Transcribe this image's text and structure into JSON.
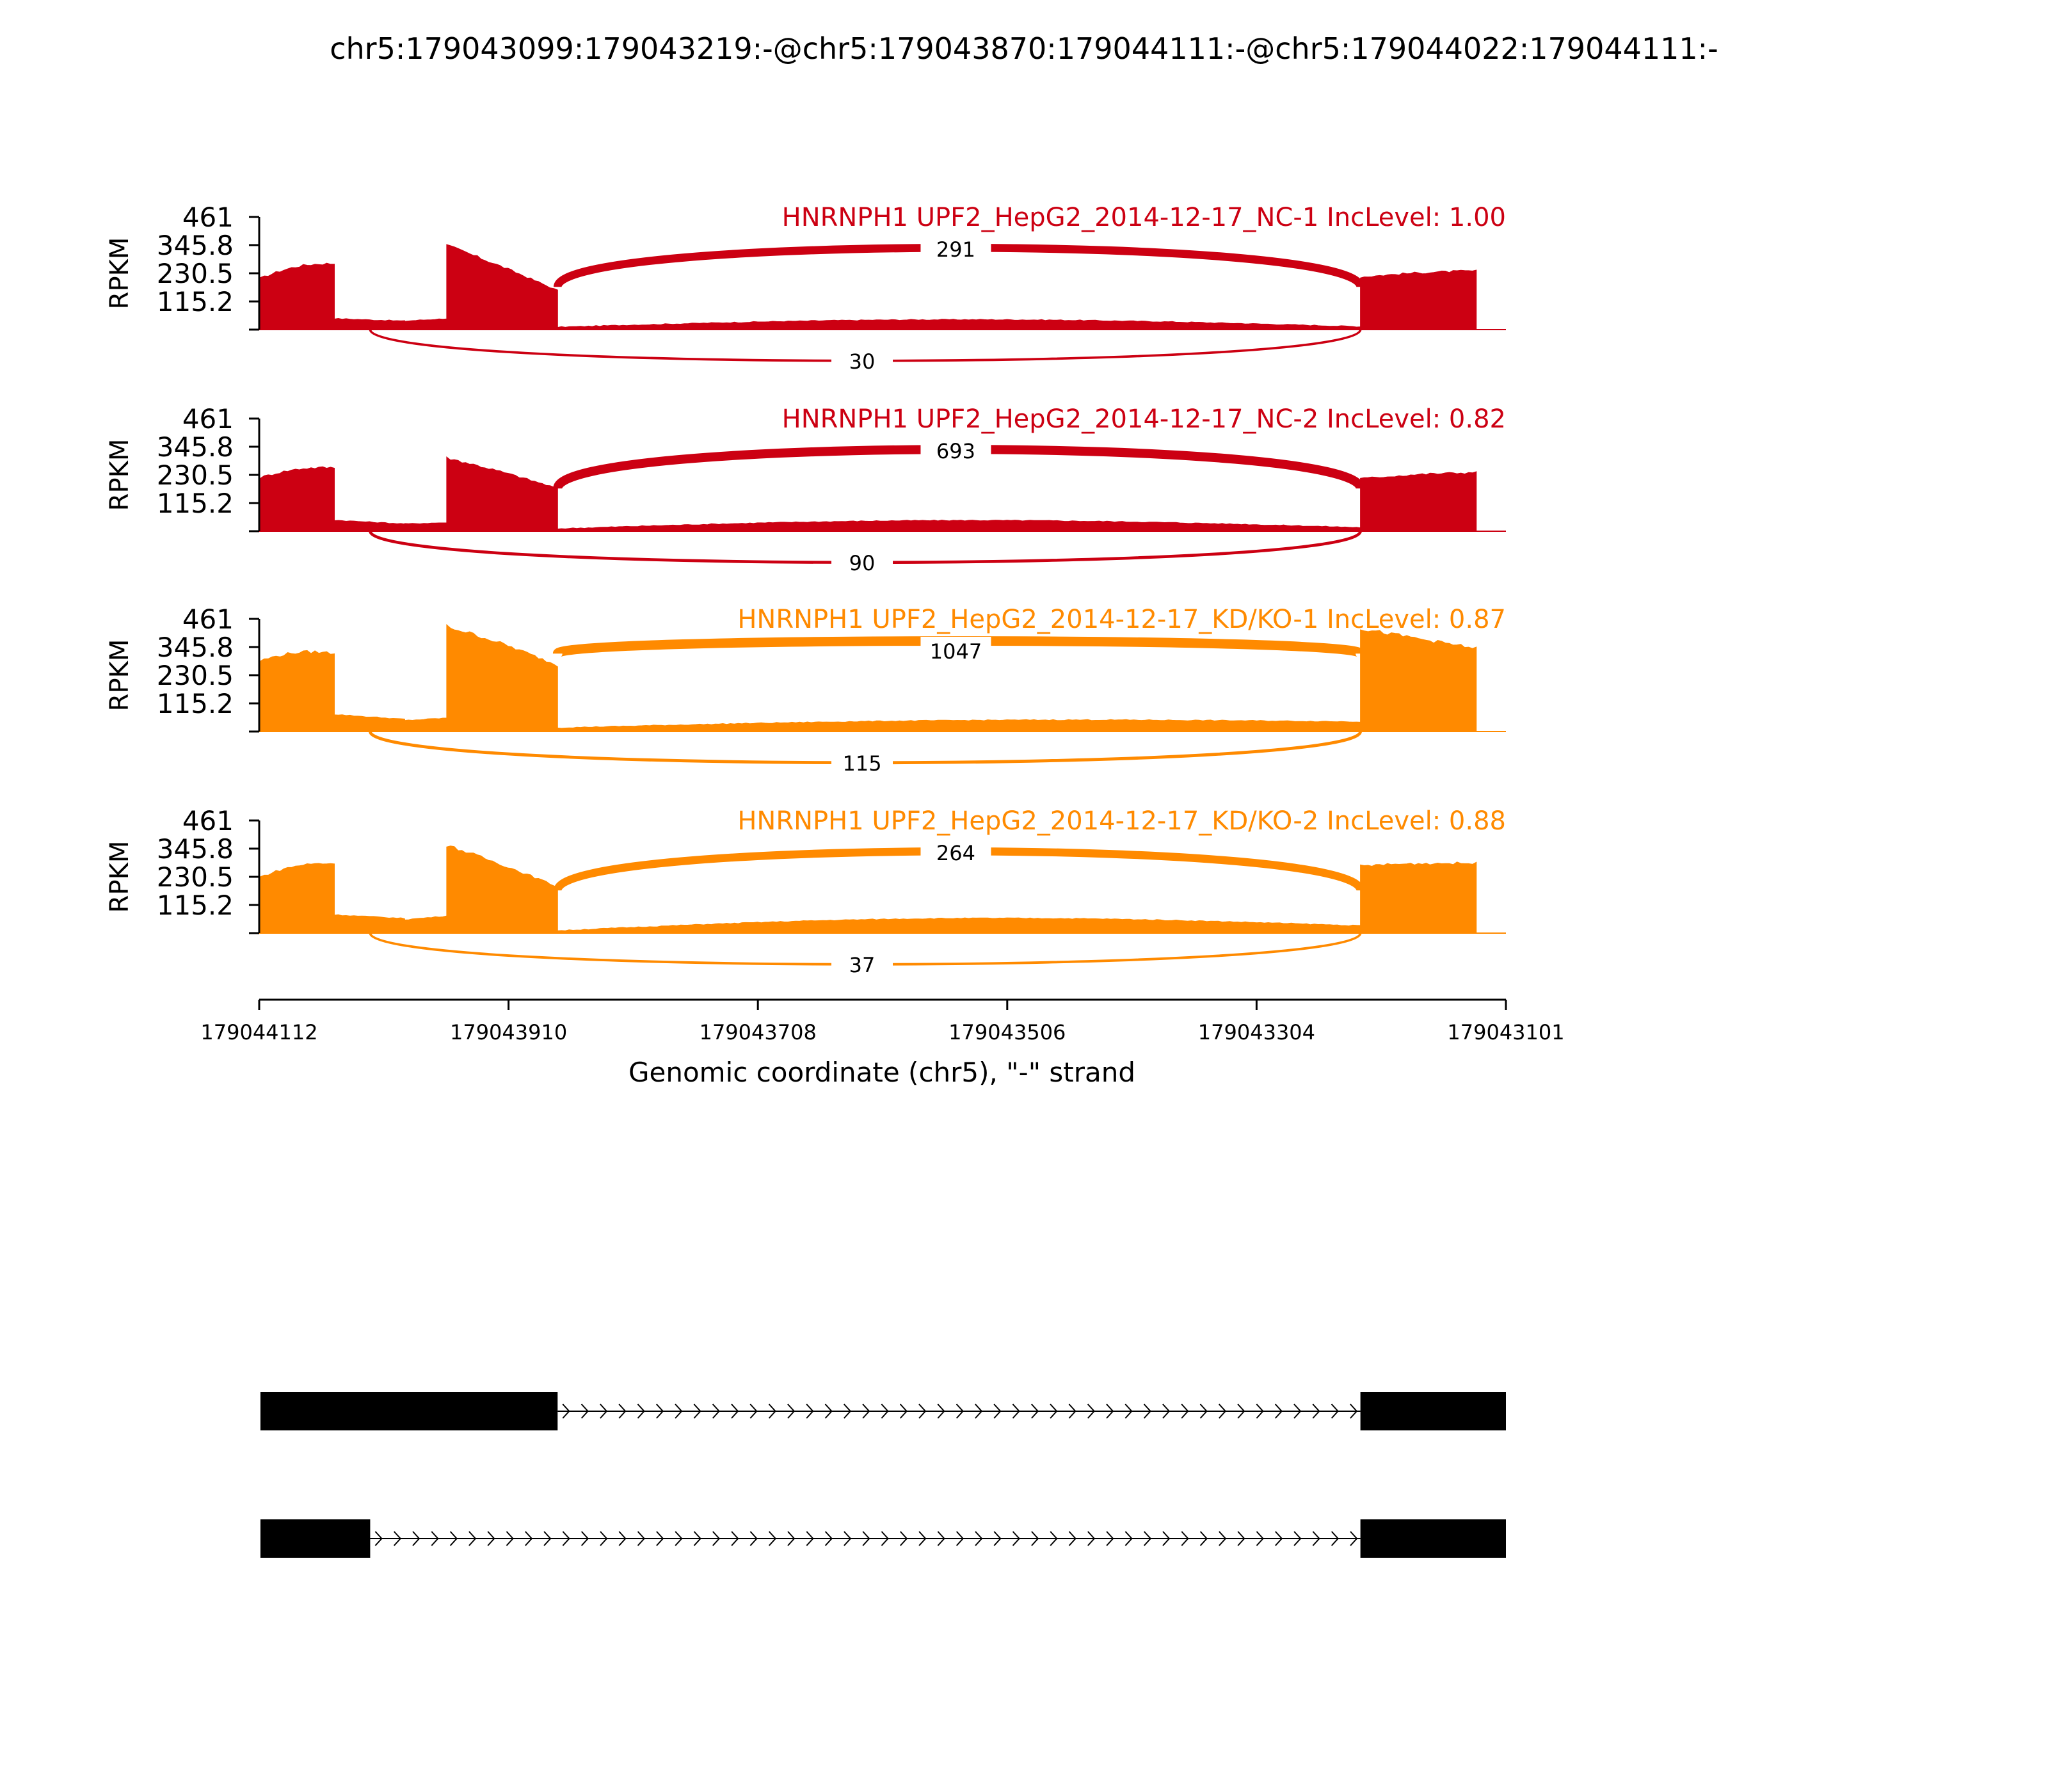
{
  "title": "chr5:179043099:179043219:-@chr5:179043870:179044111:-@chr5:179044022:179044111:-",
  "colors": {
    "nc": "#cc0012",
    "kd": "#ff8a00",
    "axis": "#000000",
    "exon": "#000000"
  },
  "chart_data": {
    "type": "area",
    "ylabel": "RPKM",
    "y_ticks": [
      "461",
      "345.8",
      "230.5",
      "115.2"
    ],
    "ylim": [
      0,
      461
    ],
    "xlabel": "Genomic coordinate (chr5), \"-\" strand",
    "x_ticks": [
      "179044112",
      "179043910",
      "179043708",
      "179043506",
      "179043304",
      "179043101"
    ],
    "xlim": [
      179044112,
      179043101
    ],
    "exons": {
      "upstream": [
        179044111,
        179044022
      ],
      "skipped": [
        179044022,
        179043870
      ],
      "downstream": [
        179043219,
        179043099
      ]
    },
    "tracks": [
      {
        "label": "HNRNPH1 UPF2_HepG2_2014-12-17_NC-1 IncLevel: 1.00",
        "color_key": "nc",
        "inclusion_junction_count": "291",
        "skipping_junction_count": "30",
        "coverage": [
          {
            "from": 179044111,
            "to": 179044051,
            "start": 210,
            "end": 270,
            "peak": 290
          },
          {
            "from": 179044051,
            "to": 179043994,
            "start": 45,
            "end": 35,
            "peak": 45
          },
          {
            "from": 179043994,
            "to": 179043960,
            "start": 35,
            "end": 45,
            "peak": 45
          },
          {
            "from": 179043960,
            "to": 179043870,
            "start": 345,
            "end": 160,
            "peak": 350
          },
          {
            "from": 179043870,
            "to": 179043219,
            "start": 10,
            "end": 12,
            "peak": 45
          },
          {
            "from": 179043219,
            "to": 179043125,
            "start": 215,
            "end": 240,
            "peak": 245
          }
        ]
      },
      {
        "label": "HNRNPH1 UPF2_HepG2_2014-12-17_NC-2 IncLevel: 0.82",
        "color_key": "nc",
        "inclusion_junction_count": "693",
        "skipping_junction_count": "90",
        "coverage": [
          {
            "from": 179044111,
            "to": 179044051,
            "start": 220,
            "end": 260,
            "peak": 275
          },
          {
            "from": 179044051,
            "to": 179043994,
            "start": 45,
            "end": 30,
            "peak": 45
          },
          {
            "from": 179043994,
            "to": 179043960,
            "start": 30,
            "end": 35,
            "peak": 35
          },
          {
            "from": 179043960,
            "to": 179043870,
            "start": 300,
            "end": 175,
            "peak": 305
          },
          {
            "from": 179043870,
            "to": 179043219,
            "start": 10,
            "end": 15,
            "peak": 50
          },
          {
            "from": 179043219,
            "to": 179043125,
            "start": 215,
            "end": 240,
            "peak": 245
          }
        ]
      },
      {
        "label": "HNRNPH1 UPF2_HepG2_2014-12-17_KD/KO-1 IncLevel: 0.87",
        "color_key": "kd",
        "inclusion_junction_count": "1047",
        "skipping_junction_count": "115",
        "coverage": [
          {
            "from": 179044111,
            "to": 179044051,
            "start": 290,
            "end": 320,
            "peak": 340
          },
          {
            "from": 179044051,
            "to": 179043994,
            "start": 70,
            "end": 50,
            "peak": 70
          },
          {
            "from": 179043994,
            "to": 179043960,
            "start": 45,
            "end": 55,
            "peak": 55
          },
          {
            "from": 179043960,
            "to": 179043870,
            "start": 430,
            "end": 270,
            "peak": 440
          },
          {
            "from": 179043870,
            "to": 179043219,
            "start": 15,
            "end": 40,
            "peak": 60
          },
          {
            "from": 179043219,
            "to": 179043125,
            "start": 420,
            "end": 340,
            "peak": 420
          }
        ]
      },
      {
        "label": "HNRNPH1 UPF2_HepG2_2014-12-17_KD/KO-2 IncLevel: 0.88",
        "color_key": "kd",
        "inclusion_junction_count": "264",
        "skipping_junction_count": "37",
        "coverage": [
          {
            "from": 179044111,
            "to": 179044051,
            "start": 230,
            "end": 285,
            "peak": 305
          },
          {
            "from": 179044051,
            "to": 179043994,
            "start": 75,
            "end": 60,
            "peak": 75
          },
          {
            "from": 179043994,
            "to": 179043960,
            "start": 55,
            "end": 70,
            "peak": 70
          },
          {
            "from": 179043960,
            "to": 179043870,
            "start": 360,
            "end": 190,
            "peak": 365
          },
          {
            "from": 179043870,
            "to": 179043219,
            "start": 10,
            "end": 30,
            "peak": 75
          },
          {
            "from": 179043219,
            "to": 179043125,
            "start": 275,
            "end": 285,
            "peak": 290
          }
        ]
      }
    ],
    "isoforms": [
      {
        "exons": [
          [
            179044111,
            179043870
          ],
          [
            179043219,
            179043099
          ]
        ]
      },
      {
        "exons": [
          [
            179044111,
            179044022
          ],
          [
            179043219,
            179043099
          ]
        ]
      }
    ]
  }
}
